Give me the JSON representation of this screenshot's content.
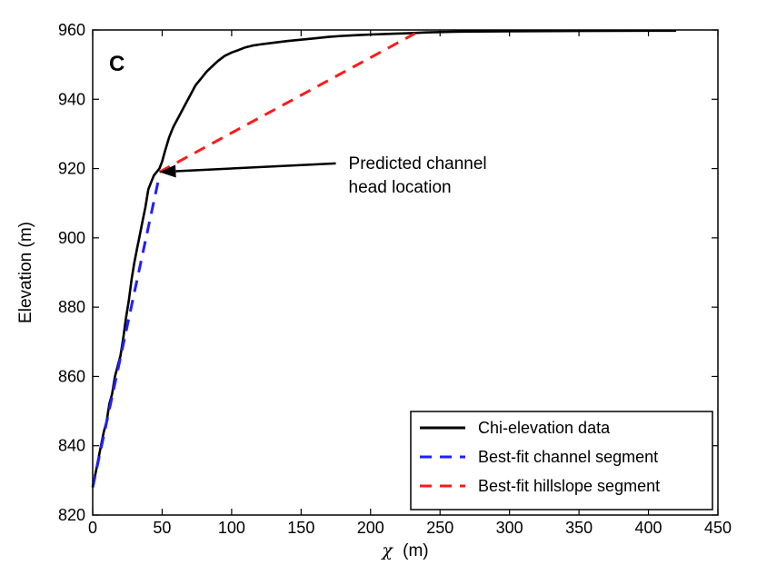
{
  "chart_data": {
    "type": "line",
    "panel_label": "C",
    "xlabel_symbol": "χ",
    "xlabel_unit": "(m)",
    "ylabel": "Elevation (m)",
    "xlim": [
      0,
      450
    ],
    "ylim": [
      820,
      960
    ],
    "xticks": [
      0,
      50,
      100,
      150,
      200,
      250,
      300,
      350,
      400,
      450
    ],
    "yticks": [
      820,
      840,
      860,
      880,
      900,
      920,
      940,
      960
    ],
    "grid": false,
    "legend_position": "bottom-right",
    "series": [
      {
        "name": "Chi-elevation data",
        "color": "#000000",
        "style": "solid",
        "x": [
          0,
          2,
          5,
          8,
          10,
          12,
          14,
          16,
          18,
          20,
          22,
          24,
          26,
          28,
          30,
          32,
          34,
          36,
          38,
          40,
          42,
          44,
          46,
          48,
          50,
          52,
          55,
          58,
          62,
          66,
          70,
          74,
          78,
          82,
          86,
          90,
          95,
          100,
          105,
          110,
          115,
          120,
          130,
          140,
          150,
          160,
          170,
          180,
          190,
          200,
          215,
          230,
          240,
          260,
          300,
          350,
          400,
          420
        ],
        "y": [
          828,
          832,
          838,
          844,
          847,
          852,
          855,
          860,
          863,
          866,
          871,
          877,
          882,
          888,
          893,
          897,
          901,
          905,
          909,
          914,
          916,
          918,
          919,
          920,
          922,
          925,
          929,
          932,
          935,
          938,
          941,
          944,
          946,
          948,
          949.5,
          951,
          952.5,
          953.5,
          954.2,
          955,
          955.5,
          955.8,
          956.3,
          956.8,
          957.2,
          957.6,
          958,
          958.3,
          958.5,
          958.7,
          958.9,
          959.1,
          959.3,
          959.5,
          959.6,
          959.7,
          959.8,
          959.8
        ]
      },
      {
        "name": "Best-fit channel segment",
        "color": "#1f1fff",
        "style": "dashed",
        "x": [
          0,
          48
        ],
        "y": [
          828,
          918
        ]
      },
      {
        "name": "Best-fit hillslope segment",
        "color": "#ff1a1a",
        "style": "dashed",
        "x": [
          48,
          232
        ],
        "y": [
          919,
          959
        ]
      }
    ],
    "annotations": [
      {
        "text_lines": [
          "Predicted channel",
          "head location"
        ],
        "arrow_from": [
          175,
          921.5
        ],
        "arrow_to": [
          48,
          919
        ]
      }
    ]
  }
}
